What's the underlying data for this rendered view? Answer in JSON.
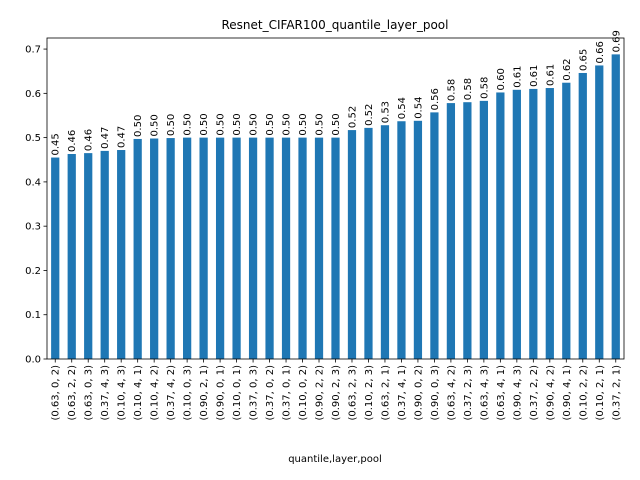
{
  "chart_data": {
    "type": "bar",
    "title": "Resnet_CIFAR100_quantile_layer_pool",
    "xlabel": "quantile,layer,pool",
    "ylabel": "",
    "ylim": [
      0,
      0.725
    ],
    "yticks": [
      0.0,
      0.1,
      0.2,
      0.3,
      0.4,
      0.5,
      0.6,
      0.7
    ],
    "ytick_labels": [
      "0.0",
      "0.1",
      "0.2",
      "0.3",
      "0.4",
      "0.5",
      "0.6",
      "0.7"
    ],
    "categories": [
      "(0.63, 0, 2)",
      "(0.63, 2, 2)",
      "(0.63, 0, 3)",
      "(0.37, 4, 3)",
      "(0.10, 4, 3)",
      "(0.10, 4, 1)",
      "(0.10, 4, 2)",
      "(0.37, 4, 2)",
      "(0.10, 0, 3)",
      "(0.90, 2, 1)",
      "(0.90, 0, 1)",
      "(0.10, 0, 1)",
      "(0.37, 0, 3)",
      "(0.37, 0, 2)",
      "(0.37, 0, 1)",
      "(0.10, 0, 2)",
      "(0.90, 2, 2)",
      "(0.90, 2, 3)",
      "(0.63, 2, 3)",
      "(0.10, 2, 3)",
      "(0.63, 2, 1)",
      "(0.37, 4, 1)",
      "(0.90, 0, 2)",
      "(0.90, 0, 3)",
      "(0.63, 4, 2)",
      "(0.37, 2, 3)",
      "(0.63, 4, 3)",
      "(0.63, 4, 1)",
      "(0.90, 4, 3)",
      "(0.37, 2, 2)",
      "(0.90, 4, 2)",
      "(0.90, 4, 1)",
      "(0.10, 2, 2)",
      "(0.10, 2, 1)",
      "(0.37, 2, 1)"
    ],
    "values": [
      0.455,
      0.463,
      0.465,
      0.47,
      0.472,
      0.497,
      0.498,
      0.499,
      0.5,
      0.5,
      0.5,
      0.5,
      0.5,
      0.5,
      0.5,
      0.5,
      0.5,
      0.5,
      0.517,
      0.522,
      0.528,
      0.537,
      0.538,
      0.557,
      0.578,
      0.58,
      0.583,
      0.602,
      0.608,
      0.61,
      0.612,
      0.624,
      0.646,
      0.663,
      0.688
    ],
    "value_labels": [
      "0.45",
      "0.46",
      "0.46",
      "0.47",
      "0.47",
      "0.50",
      "0.50",
      "0.50",
      "0.50",
      "0.50",
      "0.50",
      "0.50",
      "0.50",
      "0.50",
      "0.50",
      "0.50",
      "0.50",
      "0.50",
      "0.52",
      "0.52",
      "0.53",
      "0.54",
      "0.54",
      "0.56",
      "0.58",
      "0.58",
      "0.58",
      "0.60",
      "0.61",
      "0.61",
      "0.61",
      "0.62",
      "0.65",
      "0.66",
      "0.69"
    ],
    "colors": {
      "bar": "#1f77b4"
    },
    "grid": false,
    "legend": "none"
  }
}
